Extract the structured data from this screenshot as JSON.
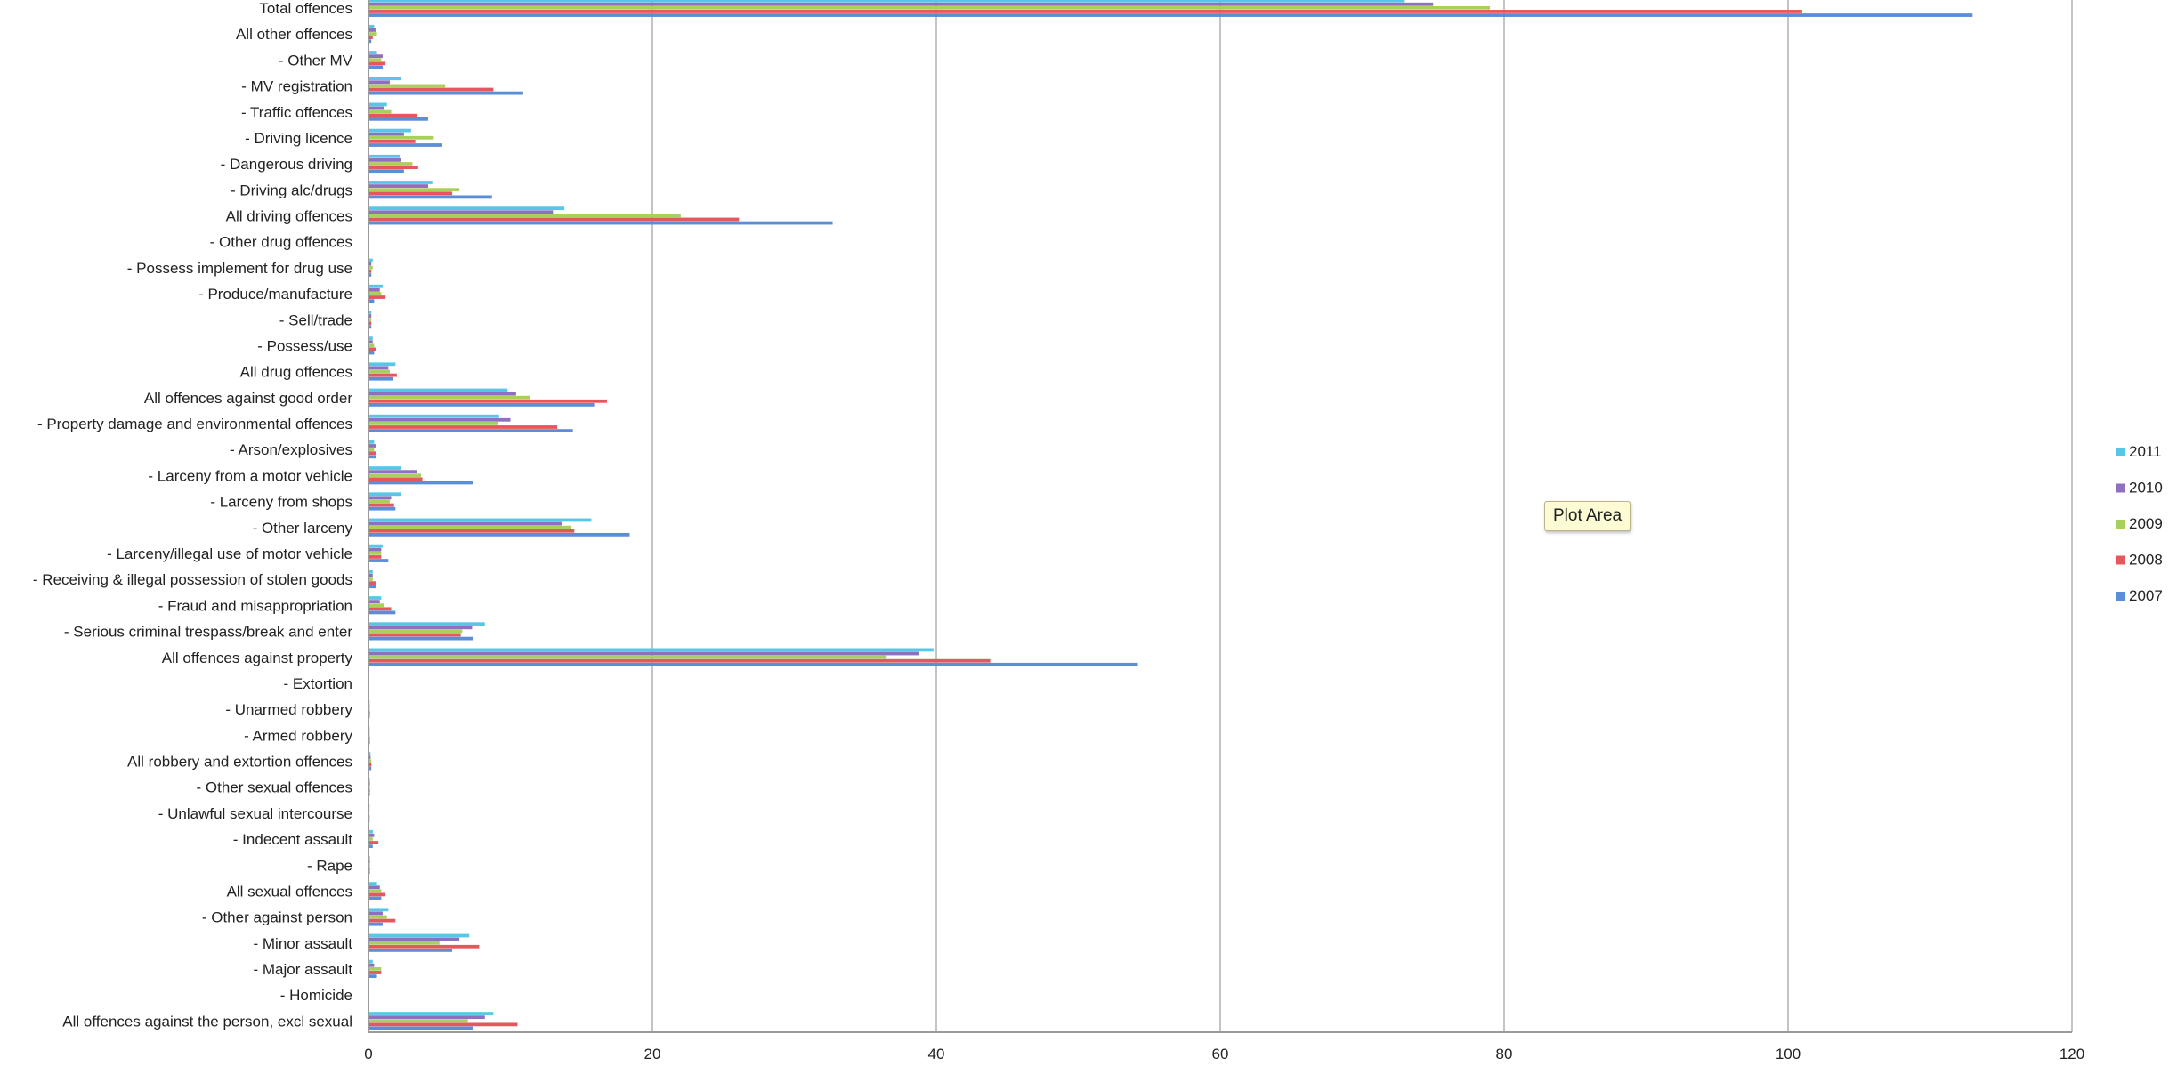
{
  "chart_data": {
    "type": "bar",
    "orientation": "horizontal",
    "xlim": [
      0,
      120
    ],
    "x_ticks": [
      "0",
      "20",
      "40",
      "60",
      "80",
      "100",
      "120"
    ],
    "grid": "vertical",
    "legend_position": "right",
    "categories": [
      "Total offences",
      "All other offences",
      "- Other MV",
      "- MV registration",
      "- Traffic offences",
      "- Driving licence",
      "- Dangerous driving",
      "- Driving alc/drugs",
      "All driving offences",
      "- Other drug offences",
      "- Possess implement for drug use",
      "- Produce/manufacture",
      "- Sell/trade",
      "- Possess/use",
      "All drug offences",
      "All offences against good order",
      "- Property damage and environmental offences",
      "- Arson/explosives",
      "- Larceny from a motor vehicle",
      "- Larceny from shops",
      "- Other larceny",
      "- Larceny/illegal use of motor vehicle",
      "- Receiving & illegal possession of stolen goods",
      "- Fraud and misappropriation",
      "- Serious criminal trespass/break and enter",
      "All offences against property",
      "- Extortion",
      "- Unarmed robbery",
      "- Armed robbery",
      "All robbery and extortion offences",
      "- Other sexual offences",
      "- Unlawful sexual intercourse",
      "- Indecent assault",
      "- Rape",
      "All sexual offences",
      "- Other against person",
      "- Minor assault",
      "- Major assault",
      "- Homicide",
      "All offences against the person, excl sexual"
    ],
    "series": [
      {
        "name": "2011",
        "color": "#56c7e6",
        "values": [
          73,
          0.4,
          0.6,
          2.3,
          1.3,
          3.0,
          2.2,
          4.5,
          13.8,
          0.05,
          0.3,
          1.0,
          0.2,
          0.3,
          1.9,
          9.8,
          9.2,
          0.4,
          2.3,
          2.3,
          15.7,
          1.0,
          0.3,
          0.9,
          8.2,
          39.8,
          0.03,
          0.08,
          0.08,
          0.15,
          0.1,
          0.08,
          0.3,
          0.1,
          0.6,
          1.4,
          7.1,
          0.3,
          0.04,
          8.8
        ]
      },
      {
        "name": "2010",
        "color": "#8e6fc0",
        "values": [
          75,
          0.5,
          1.0,
          1.5,
          1.1,
          2.5,
          2.3,
          4.2,
          13.0,
          0.05,
          0.2,
          0.8,
          0.2,
          0.3,
          1.4,
          10.4,
          10.0,
          0.5,
          3.4,
          1.6,
          13.6,
          0.9,
          0.3,
          0.8,
          7.3,
          38.8,
          0.03,
          0.08,
          0.08,
          0.15,
          0.1,
          0.07,
          0.4,
          0.1,
          0.8,
          1.0,
          6.4,
          0.4,
          0.04,
          8.2
        ]
      },
      {
        "name": "2009",
        "color": "#a9cf5c",
        "values": [
          79,
          0.6,
          0.9,
          5.4,
          1.6,
          4.6,
          3.1,
          6.4,
          22.0,
          0.06,
          0.3,
          0.9,
          0.2,
          0.4,
          1.5,
          11.4,
          9.1,
          0.4,
          3.7,
          1.5,
          14.3,
          0.9,
          0.3,
          1.1,
          6.6,
          36.5,
          0.03,
          0.09,
          0.09,
          0.2,
          0.1,
          0.07,
          0.3,
          0.1,
          0.9,
          1.3,
          5.0,
          0.9,
          0.05,
          7.0
        ]
      },
      {
        "name": "2008",
        "color": "#e6575d",
        "values": [
          101,
          0.3,
          1.2,
          8.8,
          3.4,
          3.3,
          3.5,
          5.9,
          26.1,
          0.06,
          0.2,
          1.2,
          0.2,
          0.5,
          2.0,
          16.8,
          13.3,
          0.5,
          3.8,
          1.8,
          14.5,
          0.9,
          0.5,
          1.6,
          6.5,
          43.8,
          0.03,
          0.1,
          0.1,
          0.2,
          0.1,
          0.08,
          0.7,
          0.1,
          1.2,
          1.9,
          7.8,
          0.9,
          0.05,
          10.5
        ]
      },
      {
        "name": "2007",
        "color": "#5b8ed9",
        "values": [
          113,
          0.2,
          1.0,
          10.9,
          4.2,
          5.2,
          2.5,
          8.7,
          32.7,
          0.05,
          0.2,
          0.4,
          0.2,
          0.4,
          1.7,
          15.9,
          14.4,
          0.5,
          7.4,
          1.9,
          18.4,
          1.4,
          0.5,
          1.9,
          7.4,
          54.2,
          0.03,
          0.09,
          0.1,
          0.2,
          0.1,
          0.08,
          0.3,
          0.1,
          0.9,
          1.0,
          5.9,
          0.6,
          0.05,
          7.4
        ]
      }
    ]
  },
  "tooltip": {
    "label": "Plot Area"
  }
}
